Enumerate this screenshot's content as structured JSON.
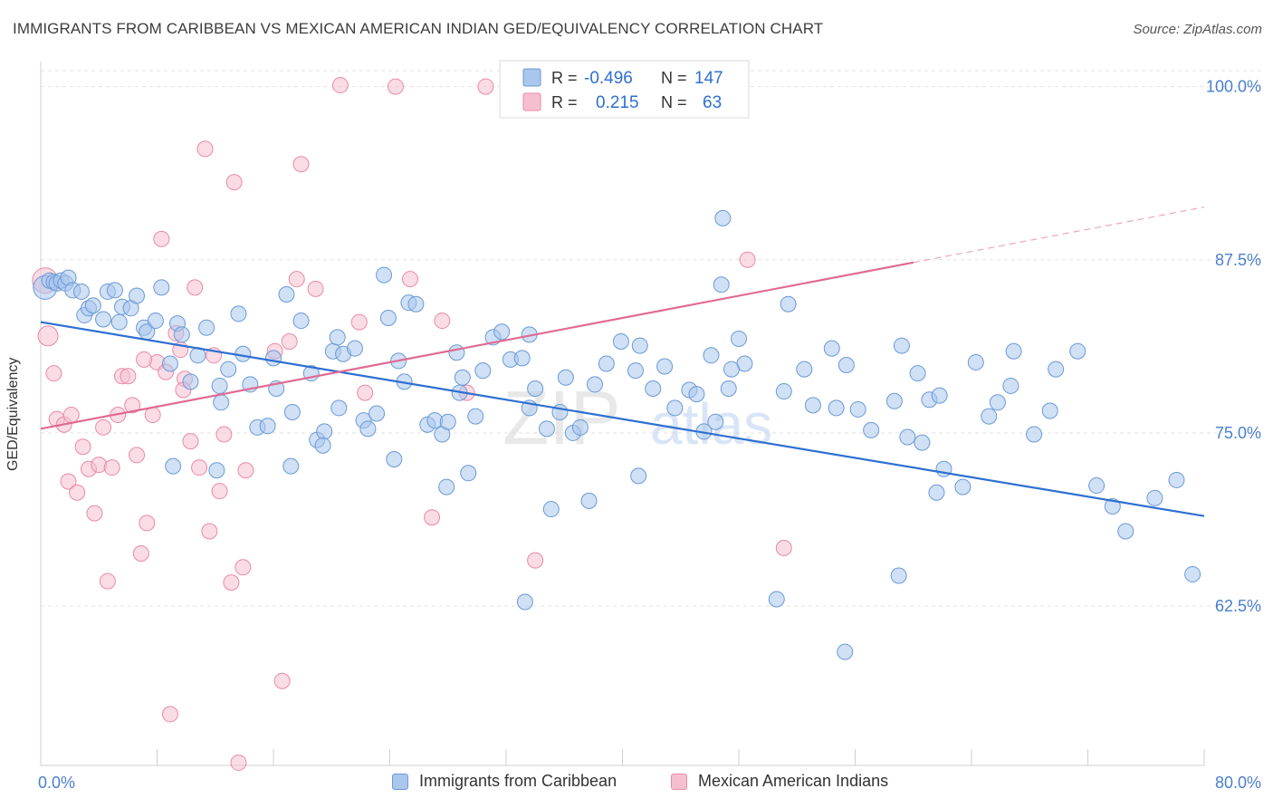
{
  "title": "IMMIGRANTS FROM CARIBBEAN VS MEXICAN AMERICAN INDIAN GED/EQUIVALENCY CORRELATION CHART",
  "source": "Source: ZipAtlas.com",
  "watermark": {
    "part1": "ZIP",
    "part2": "atlas"
  },
  "colors": {
    "blue": "#6a9ad6",
    "blue_fill": "#a9c6ec",
    "blue_line": "#2e6fd0",
    "pink": "#e98aa7",
    "pink_fill": "#f6bfd0",
    "pink_line": "#e06a93",
    "axis_text": "#4a7fd0"
  },
  "chart_data": {
    "type": "scatter",
    "title": "IMMIGRANTS FROM CARIBBEAN VS MEXICAN AMERICAN INDIAN GED/EQUIVALENCY CORRELATION CHART",
    "xlabel": "",
    "ylabel": "GED/Equivalency",
    "xlim": [
      0,
      80
    ],
    "ylim": [
      51,
      102
    ],
    "x_tick_labels": [
      "0.0%",
      "80.0%"
    ],
    "y_ticks": [
      62.5,
      75.0,
      87.5,
      100.0
    ],
    "y_tick_labels": [
      "62.5%",
      "75.0%",
      "87.5%",
      "100.0%"
    ],
    "grid": true,
    "legend": {
      "placement": "top-center",
      "rows": [
        {
          "r_label": "R =",
          "r_value": "-0.496",
          "n_label": "N =",
          "n_value": "147"
        },
        {
          "r_label": "R =",
          "r_value": "0.215",
          "n_label": "N =",
          "n_value": "63"
        }
      ]
    },
    "series": [
      {
        "name": "Immigrants from Caribbean",
        "color": "#6a9ad6",
        "trend": {
          "x0": 0,
          "y0": 83.0,
          "x1": 80,
          "y1": 69.0
        },
        "points": [
          [
            0.3,
            85.5
          ],
          [
            0.6,
            86.0
          ],
          [
            0.9,
            85.9
          ],
          [
            1.1,
            85.8
          ],
          [
            1.4,
            86.0
          ],
          [
            1.7,
            85.8
          ],
          [
            1.9,
            86.2
          ],
          [
            2.2,
            85.3
          ],
          [
            2.8,
            85.2
          ],
          [
            3.0,
            83.5
          ],
          [
            3.3,
            84.0
          ],
          [
            3.6,
            84.2
          ],
          [
            4.3,
            83.2
          ],
          [
            4.6,
            85.2
          ],
          [
            5.1,
            85.3
          ],
          [
            5.4,
            83.0
          ],
          [
            5.6,
            84.1
          ],
          [
            6.2,
            84.0
          ],
          [
            6.6,
            84.9
          ],
          [
            7.1,
            82.6
          ],
          [
            7.3,
            82.3
          ],
          [
            7.9,
            83.1
          ],
          [
            8.3,
            85.5
          ],
          [
            8.9,
            80.0
          ],
          [
            9.4,
            82.9
          ],
          [
            9.7,
            82.1
          ],
          [
            10.3,
            78.7
          ],
          [
            10.8,
            80.6
          ],
          [
            11.4,
            82.6
          ],
          [
            12.4,
            77.2
          ],
          [
            12.9,
            79.6
          ],
          [
            13.6,
            83.6
          ],
          [
            13.9,
            80.7
          ],
          [
            14.4,
            78.5
          ],
          [
            14.9,
            75.4
          ],
          [
            15.6,
            75.5
          ],
          [
            16.2,
            78.2
          ],
          [
            16.9,
            85.0
          ],
          [
            17.3,
            76.5
          ],
          [
            17.9,
            83.1
          ],
          [
            18.6,
            79.3
          ],
          [
            19.0,
            74.5
          ],
          [
            19.5,
            75.1
          ],
          [
            20.1,
            80.9
          ],
          [
            20.4,
            81.9
          ],
          [
            20.8,
            80.7
          ],
          [
            21.6,
            81.1
          ],
          [
            22.2,
            75.9
          ],
          [
            22.5,
            75.3
          ],
          [
            23.1,
            76.4
          ],
          [
            23.6,
            86.4
          ],
          [
            23.9,
            83.3
          ],
          [
            24.6,
            80.2
          ],
          [
            25.3,
            84.4
          ],
          [
            25.8,
            84.3
          ],
          [
            26.6,
            75.6
          ],
          [
            27.1,
            75.9
          ],
          [
            27.6,
            74.9
          ],
          [
            28.0,
            75.8
          ],
          [
            28.6,
            80.8
          ],
          [
            29.0,
            79.0
          ],
          [
            29.4,
            72.1
          ],
          [
            29.9,
            76.2
          ],
          [
            30.4,
            79.5
          ],
          [
            31.1,
            81.9
          ],
          [
            31.7,
            82.3
          ],
          [
            32.3,
            80.3
          ],
          [
            33.1,
            80.4
          ],
          [
            33.6,
            82.1
          ],
          [
            34.0,
            78.2
          ],
          [
            34.8,
            75.3
          ],
          [
            35.7,
            76.5
          ],
          [
            36.1,
            79.0
          ],
          [
            36.6,
            75.0
          ],
          [
            37.1,
            75.4
          ],
          [
            38.9,
            80.0
          ],
          [
            39.9,
            81.6
          ],
          [
            40.9,
            79.5
          ],
          [
            41.2,
            81.3
          ],
          [
            42.9,
            79.8
          ],
          [
            43.6,
            76.8
          ],
          [
            44.6,
            78.1
          ],
          [
            45.1,
            77.8
          ],
          [
            45.6,
            75.1
          ],
          [
            46.1,
            80.6
          ],
          [
            46.8,
            85.7
          ],
          [
            46.9,
            90.5
          ],
          [
            47.3,
            78.2
          ],
          [
            48.0,
            81.8
          ],
          [
            48.4,
            80.0
          ],
          [
            51.4,
            84.3
          ],
          [
            52.5,
            79.6
          ],
          [
            53.1,
            77.0
          ],
          [
            54.4,
            81.1
          ],
          [
            54.7,
            76.8
          ],
          [
            55.4,
            79.9
          ],
          [
            57.1,
            75.2
          ],
          [
            58.7,
            77.3
          ],
          [
            59.2,
            81.3
          ],
          [
            59.6,
            74.7
          ],
          [
            60.3,
            79.3
          ],
          [
            60.6,
            74.3
          ],
          [
            61.1,
            77.4
          ],
          [
            62.1,
            72.4
          ],
          [
            63.4,
            71.1
          ],
          [
            64.3,
            80.1
          ],
          [
            65.2,
            76.2
          ],
          [
            66.7,
            78.4
          ],
          [
            66.9,
            80.9
          ],
          [
            68.3,
            74.9
          ],
          [
            69.4,
            76.6
          ],
          [
            69.8,
            79.6
          ],
          [
            71.3,
            80.9
          ],
          [
            72.6,
            71.2
          ],
          [
            73.7,
            69.7
          ],
          [
            74.6,
            67.9
          ],
          [
            76.6,
            70.3
          ],
          [
            78.1,
            71.6
          ],
          [
            79.2,
            64.8
          ],
          [
            12.3,
            78.4
          ],
          [
            16.0,
            80.4
          ],
          [
            20.5,
            76.8
          ],
          [
            25.0,
            78.7
          ],
          [
            28.8,
            77.9
          ],
          [
            33.6,
            76.8
          ],
          [
            38.1,
            78.5
          ],
          [
            42.1,
            78.2
          ],
          [
            47.5,
            79.6
          ],
          [
            51.1,
            78.0
          ],
          [
            56.2,
            76.7
          ],
          [
            61.8,
            77.7
          ],
          [
            65.8,
            77.2
          ],
          [
            9.1,
            72.6
          ],
          [
            12.1,
            72.3
          ],
          [
            17.2,
            72.6
          ],
          [
            19.4,
            74.1
          ],
          [
            24.3,
            73.1
          ],
          [
            27.9,
            71.1
          ],
          [
            33.3,
            62.8
          ],
          [
            35.1,
            69.5
          ],
          [
            37.7,
            70.1
          ],
          [
            41.1,
            71.9
          ],
          [
            46.4,
            75.8
          ],
          [
            50.6,
            63.0
          ],
          [
            55.3,
            59.2
          ],
          [
            59.0,
            64.7
          ],
          [
            61.6,
            70.7
          ]
        ]
      },
      {
        "name": "Mexican American Indians",
        "color": "#e98aa7",
        "trend": {
          "x0": 0,
          "y0": 75.3,
          "x1": 60,
          "y1": 87.3
        },
        "points": [
          [
            0.3,
            86.0
          ],
          [
            0.5,
            82.0
          ],
          [
            0.9,
            79.3
          ],
          [
            1.1,
            76.0
          ],
          [
            1.6,
            75.6
          ],
          [
            1.9,
            71.5
          ],
          [
            2.1,
            76.3
          ],
          [
            2.5,
            70.7
          ],
          [
            2.9,
            74.0
          ],
          [
            3.3,
            72.4
          ],
          [
            3.7,
            69.2
          ],
          [
            4.0,
            72.7
          ],
          [
            4.3,
            75.4
          ],
          [
            4.6,
            64.3
          ],
          [
            4.9,
            72.5
          ],
          [
            5.3,
            76.3
          ],
          [
            5.6,
            79.1
          ],
          [
            6.0,
            79.1
          ],
          [
            6.3,
            77.0
          ],
          [
            6.6,
            73.4
          ],
          [
            6.9,
            66.3
          ],
          [
            7.3,
            68.5
          ],
          [
            7.7,
            76.3
          ],
          [
            8.0,
            80.1
          ],
          [
            8.3,
            89.0
          ],
          [
            8.6,
            79.4
          ],
          [
            8.9,
            54.7
          ],
          [
            9.3,
            82.2
          ],
          [
            9.6,
            81.0
          ],
          [
            9.9,
            78.9
          ],
          [
            10.3,
            74.4
          ],
          [
            10.6,
            85.5
          ],
          [
            10.9,
            72.5
          ],
          [
            11.3,
            95.5
          ],
          [
            11.6,
            67.9
          ],
          [
            11.9,
            80.6
          ],
          [
            12.6,
            74.9
          ],
          [
            13.1,
            64.2
          ],
          [
            13.3,
            93.1
          ],
          [
            13.6,
            51.2
          ],
          [
            13.9,
            65.3
          ],
          [
            16.1,
            80.9
          ],
          [
            16.6,
            57.1
          ],
          [
            17.1,
            81.6
          ],
          [
            17.6,
            86.1
          ],
          [
            17.9,
            94.4
          ],
          [
            18.9,
            85.4
          ],
          [
            20.6,
            100.1
          ],
          [
            21.9,
            83.0
          ],
          [
            22.3,
            77.9
          ],
          [
            24.4,
            100.0
          ],
          [
            25.4,
            86.1
          ],
          [
            26.9,
            68.9
          ],
          [
            27.6,
            83.1
          ],
          [
            29.3,
            77.9
          ],
          [
            30.6,
            100.0
          ],
          [
            34.0,
            65.8
          ],
          [
            48.6,
            87.5
          ],
          [
            51.1,
            66.7
          ],
          [
            7.1,
            80.3
          ],
          [
            9.8,
            78.1
          ],
          [
            12.3,
            70.8
          ],
          [
            14.1,
            72.3
          ]
        ]
      }
    ]
  },
  "bottom_legend": {
    "blue_label": "Immigrants from Caribbean",
    "pink_label": "Mexican American Indians"
  }
}
